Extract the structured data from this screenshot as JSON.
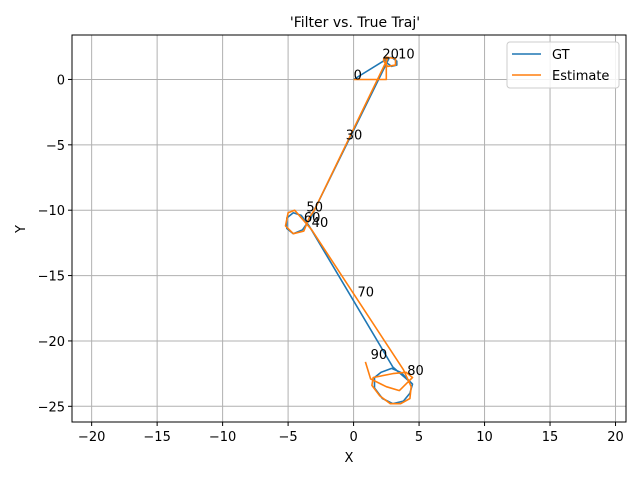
{
  "chart_data": {
    "type": "line",
    "title": "'Filter vs. True Traj'",
    "xlabel": "X",
    "ylabel": "Y",
    "xlim": [
      -21.5,
      20.8
    ],
    "ylim": [
      -26.2,
      3.4
    ],
    "xticks": [
      -20,
      -15,
      -10,
      -5,
      0,
      5,
      10,
      15,
      20
    ],
    "yticks": [
      0,
      -5,
      -10,
      -15,
      -20,
      -25
    ],
    "xtick_labels": [
      "−20",
      "−15",
      "−10",
      "−5",
      "0",
      "5",
      "10",
      "15",
      "20"
    ],
    "ytick_labels": [
      "0",
      "−5",
      "−10",
      "−15",
      "−20",
      "−25"
    ],
    "grid": true,
    "legend_position": "top-right",
    "colors": {
      "GT": "#1f77b4",
      "Estimate": "#ff7f0e"
    },
    "series": [
      {
        "name": "GT",
        "color": "#1f77b4",
        "x": [
          0.0,
          2.6,
          2.9,
          3.3,
          3.3,
          2.9,
          2.5,
          2.4,
          2.7,
          -3.0,
          -3.2,
          -3.9,
          -4.6,
          -5.1,
          -5.1,
          -4.6,
          -4.0,
          -3.4,
          3.0,
          4.5,
          4.3,
          3.8,
          3.0,
          2.2,
          1.6,
          1.6,
          2.1,
          2.9,
          3.6,
          4.2,
          4.5
        ],
        "y": [
          0.0,
          1.6,
          1.7,
          1.4,
          1.1,
          1.0,
          1.3,
          1.5,
          1.6,
          -10.0,
          -10.5,
          -11.5,
          -11.8,
          -11.4,
          -10.6,
          -10.2,
          -10.4,
          -11.2,
          -22.0,
          -23.3,
          -24.0,
          -24.6,
          -24.8,
          -24.4,
          -23.6,
          -22.8,
          -22.4,
          -22.1,
          -22.4,
          -23.0,
          -23.3
        ]
      },
      {
        "name": "Estimate",
        "color": "#ff7f0e",
        "x": [
          0.0,
          2.5,
          2.5,
          3.2,
          3.2,
          2.6,
          2.3,
          2.3,
          2.6,
          -3.0,
          -3.4,
          -3.8,
          -4.6,
          -5.2,
          -5.0,
          -4.5,
          -3.8,
          -3.2,
          3.8,
          4.4,
          4.3,
          3.6,
          2.8,
          2.0,
          1.4,
          1.5,
          3.0,
          4.0,
          4.5,
          3.5,
          2.5,
          1.3,
          0.9
        ],
        "y": [
          0.0,
          0.0,
          1.7,
          1.6,
          1.1,
          1.0,
          1.4,
          1.6,
          1.6,
          -10.0,
          -10.6,
          -11.6,
          -11.8,
          -11.2,
          -10.2,
          -10.0,
          -10.8,
          -11.5,
          -22.2,
          -23.5,
          -24.4,
          -24.8,
          -24.8,
          -24.2,
          -23.4,
          -22.8,
          -22.5,
          -22.4,
          -22.8,
          -23.8,
          -23.5,
          -22.9,
          -21.6
        ]
      }
    ],
    "annotations": [
      {
        "text": "0",
        "x": 0.0,
        "y": 0.0
      },
      {
        "text": "10",
        "x": 3.4,
        "y": 1.6
      },
      {
        "text": "20",
        "x": 2.2,
        "y": 1.6
      },
      {
        "text": "30",
        "x": -0.6,
        "y": -4.6
      },
      {
        "text": "40",
        "x": -3.2,
        "y": -11.3
      },
      {
        "text": "50",
        "x": -3.6,
        "y": -10.1
      },
      {
        "text": "60",
        "x": -3.8,
        "y": -10.9
      },
      {
        "text": "70",
        "x": 0.3,
        "y": -16.6
      },
      {
        "text": "80",
        "x": 4.1,
        "y": -22.6
      },
      {
        "text": "90",
        "x": 1.3,
        "y": -21.4
      }
    ]
  }
}
